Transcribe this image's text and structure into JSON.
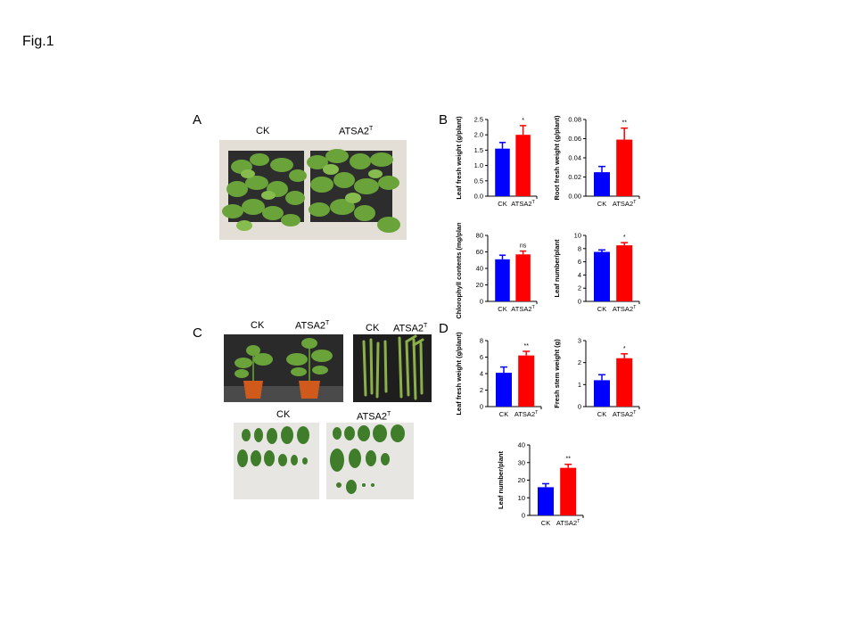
{
  "figure": {
    "title": "Fig.1"
  },
  "panels": {
    "A": {
      "letter": "A",
      "label_ck": "CK",
      "label_treat": "ATSA2",
      "label_treat_sup": "T"
    },
    "B": {
      "letter": "B"
    },
    "C": {
      "letter": "C",
      "label_ck_plant": "CK",
      "label_treat_plant": "ATSA2",
      "label_treat_plant_sup": "T",
      "label_ck_stem": "CK",
      "label_treat_stem": "ATSA2",
      "label_treat_stem_sup": "T",
      "label_ck_leaves": "CK",
      "label_treat_leaves": "ATSA2",
      "label_treat_leaves_sup": "T"
    },
    "D": {
      "letter": "D"
    }
  },
  "colors": {
    "ck": "#0000ff",
    "treat": "#ff0000",
    "axis": "#000000"
  },
  "chart_data": [
    {
      "id": "B1",
      "type": "bar",
      "ylabel": "Leaf fresh weight (g/plant)",
      "categories": [
        "CK",
        "ATSA2"
      ],
      "category_sup": [
        "",
        "T"
      ],
      "values": [
        1.55,
        2.0
      ],
      "errors": [
        0.2,
        0.3
      ],
      "significance": "*",
      "ylim": [
        0,
        2.5
      ],
      "yticks": [
        "0.0",
        "0.5",
        "1.0",
        "1.5",
        "2.0",
        "2.5"
      ]
    },
    {
      "id": "B2",
      "type": "bar",
      "ylabel": "Root fresh weight (g/plant)",
      "categories": [
        "CK",
        "ATSA2"
      ],
      "category_sup": [
        "",
        "T"
      ],
      "values": [
        0.025,
        0.059
      ],
      "errors": [
        0.006,
        0.012
      ],
      "significance": "**",
      "ylim": [
        0,
        0.08
      ],
      "yticks": [
        "0.00",
        "0.02",
        "0.04",
        "0.06",
        "0.08"
      ]
    },
    {
      "id": "B3",
      "type": "bar",
      "ylabel": "Chlorophyll contents (mg/plant)",
      "categories": [
        "CK",
        "ATSA2"
      ],
      "category_sup": [
        "",
        "T"
      ],
      "values": [
        51,
        57
      ],
      "errors": [
        5,
        4
      ],
      "significance": "ns",
      "ylim": [
        0,
        80
      ],
      "yticks": [
        "0",
        "20",
        "40",
        "60",
        "80"
      ]
    },
    {
      "id": "B4",
      "type": "bar",
      "ylabel": "Leaf number/plant",
      "categories": [
        "CK",
        "ATSA2"
      ],
      "category_sup": [
        "",
        "T"
      ],
      "values": [
        7.5,
        8.5
      ],
      "errors": [
        0.3,
        0.4
      ],
      "significance": "*",
      "ylim": [
        0,
        10
      ],
      "yticks": [
        "0",
        "2",
        "4",
        "6",
        "8",
        "10"
      ]
    },
    {
      "id": "D1",
      "type": "bar",
      "ylabel": "Leaf fresh weight (g/plant)",
      "categories": [
        "CK",
        "ATSA2"
      ],
      "category_sup": [
        "",
        "T"
      ],
      "values": [
        4.1,
        6.2
      ],
      "errors": [
        0.7,
        0.5
      ],
      "significance": "**",
      "ylim": [
        0,
        8
      ],
      "yticks": [
        "0",
        "2",
        "4",
        "6",
        "8"
      ]
    },
    {
      "id": "D2",
      "type": "bar",
      "ylabel": "Fresh stem weight (g)",
      "categories": [
        "CK",
        "ATSA2"
      ],
      "category_sup": [
        "",
        "T"
      ],
      "values": [
        1.2,
        2.2
      ],
      "errors": [
        0.25,
        0.2
      ],
      "significance": "*",
      "ylim": [
        0,
        3
      ],
      "yticks": [
        "0",
        "1",
        "2",
        "3"
      ]
    },
    {
      "id": "D3",
      "type": "bar",
      "ylabel": "Leaf number/plant",
      "categories": [
        "CK",
        "ATSA2"
      ],
      "category_sup": [
        "",
        "T"
      ],
      "values": [
        16,
        27
      ],
      "errors": [
        2,
        2
      ],
      "significance": "**",
      "ylim": [
        0,
        40
      ],
      "yticks": [
        "0",
        "10",
        "20",
        "30",
        "40"
      ]
    }
  ]
}
